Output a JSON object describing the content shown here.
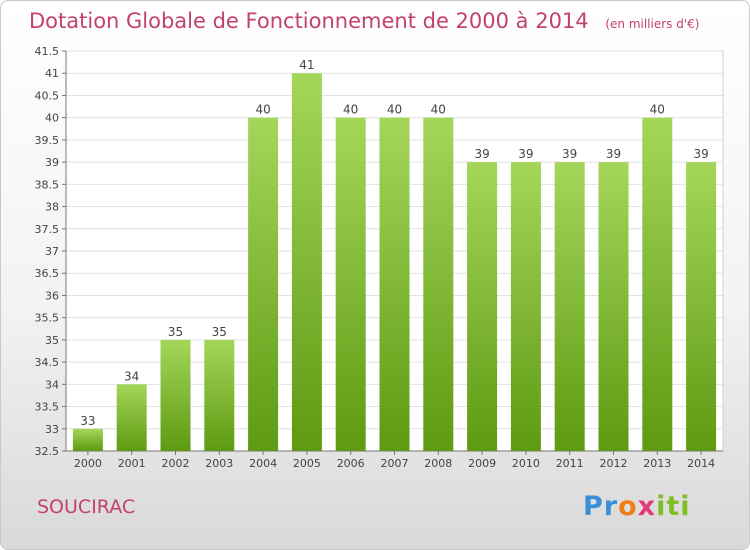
{
  "header": {
    "title": "Dotation Globale de Fonctionnement de 2000 à 2014",
    "unit": "(en milliers d'€)"
  },
  "footer": {
    "commune": "SOUCIRAC",
    "brand_parts": [
      "Pr",
      "o",
      "x",
      "iti"
    ]
  },
  "colors": {
    "bar_top": "#a4d65a",
    "bar_bottom": "#5e9a12",
    "accent": "#c4406e"
  },
  "chart_data": {
    "type": "bar",
    "categories": [
      "2000",
      "2001",
      "2002",
      "2003",
      "2004",
      "2005",
      "2006",
      "2007",
      "2008",
      "2009",
      "2010",
      "2011",
      "2012",
      "2013",
      "2014"
    ],
    "values": [
      33,
      34,
      35,
      35,
      40,
      41,
      40,
      40,
      40,
      39,
      39,
      39,
      39,
      40,
      39
    ],
    "ylim": [
      32.5,
      41.5
    ],
    "yticks": [
      "32.5",
      "33",
      "33.5",
      "34",
      "34.5",
      "35",
      "35.5",
      "36",
      "36.5",
      "37",
      "37.5",
      "38",
      "38.5",
      "39",
      "39.5",
      "40",
      "40.5",
      "41",
      "41.5"
    ],
    "grid": true
  }
}
